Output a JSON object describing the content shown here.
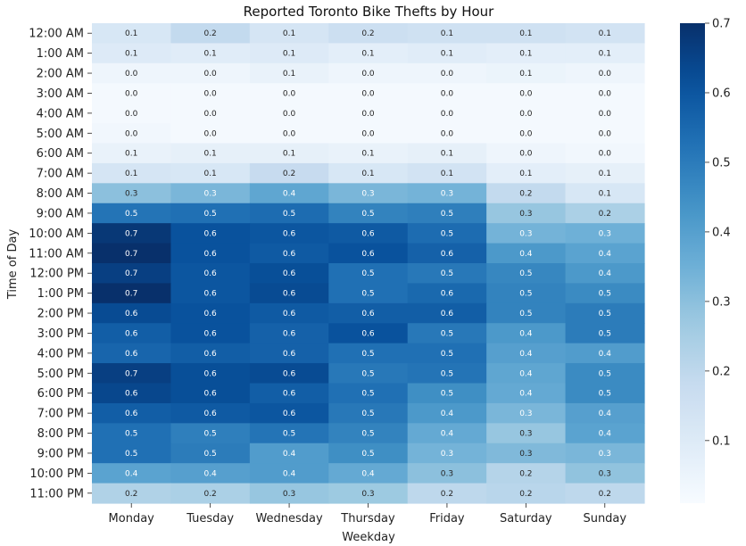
{
  "chart_data": {
    "type": "heatmap",
    "title": "Reported Toronto Bike Thefts by Hour",
    "xlabel": "Weekday",
    "ylabel": "Time of Day",
    "x_categories": [
      "Monday",
      "Tuesday",
      "Wednesday",
      "Thursday",
      "Friday",
      "Saturday",
      "Sunday"
    ],
    "y_categories": [
      "12:00 AM",
      "1:00 AM",
      "2:00 AM",
      "3:00 AM",
      "4:00 AM",
      "5:00 AM",
      "6:00 AM",
      "7:00 AM",
      "8:00 AM",
      "9:00 AM",
      "10:00 AM",
      "11:00 AM",
      "12:00 PM",
      "1:00 PM",
      "2:00 PM",
      "3:00 PM",
      "4:00 PM",
      "5:00 PM",
      "6:00 PM",
      "7:00 PM",
      "8:00 PM",
      "9:00 PM",
      "10:00 PM",
      "11:00 PM"
    ],
    "values": [
      [
        0.12,
        0.19,
        0.13,
        0.16,
        0.15,
        0.15,
        0.14
      ],
      [
        0.1,
        0.09,
        0.1,
        0.08,
        0.09,
        0.08,
        0.08
      ],
      [
        0.04,
        0.04,
        0.06,
        0.04,
        0.04,
        0.05,
        0.04
      ],
      [
        0.02,
        0.02,
        0.02,
        0.02,
        0.02,
        0.02,
        0.02
      ],
      [
        0.02,
        0.02,
        0.02,
        0.02,
        0.02,
        0.02,
        0.02
      ],
      [
        0.03,
        0.02,
        0.02,
        0.02,
        0.02,
        0.02,
        0.02
      ],
      [
        0.06,
        0.07,
        0.07,
        0.06,
        0.07,
        0.04,
        0.03
      ],
      [
        0.13,
        0.12,
        0.18,
        0.12,
        0.14,
        0.08,
        0.07
      ],
      [
        0.3,
        0.33,
        0.38,
        0.33,
        0.34,
        0.19,
        0.12
      ],
      [
        0.52,
        0.53,
        0.54,
        0.48,
        0.49,
        0.28,
        0.24
      ],
      [
        0.68,
        0.61,
        0.6,
        0.59,
        0.54,
        0.34,
        0.35
      ],
      [
        0.7,
        0.61,
        0.59,
        0.61,
        0.57,
        0.42,
        0.39
      ],
      [
        0.66,
        0.6,
        0.62,
        0.53,
        0.51,
        0.47,
        0.42
      ],
      [
        0.7,
        0.6,
        0.63,
        0.53,
        0.55,
        0.48,
        0.46
      ],
      [
        0.63,
        0.61,
        0.59,
        0.58,
        0.58,
        0.48,
        0.5
      ],
      [
        0.58,
        0.61,
        0.57,
        0.61,
        0.51,
        0.42,
        0.5
      ],
      [
        0.56,
        0.58,
        0.57,
        0.53,
        0.53,
        0.4,
        0.41
      ],
      [
        0.66,
        0.62,
        0.63,
        0.51,
        0.52,
        0.38,
        0.46
      ],
      [
        0.64,
        0.62,
        0.58,
        0.53,
        0.45,
        0.37,
        0.46
      ],
      [
        0.58,
        0.59,
        0.6,
        0.51,
        0.42,
        0.33,
        0.4
      ],
      [
        0.53,
        0.49,
        0.52,
        0.48,
        0.37,
        0.28,
        0.39
      ],
      [
        0.53,
        0.5,
        0.41,
        0.45,
        0.34,
        0.32,
        0.33
      ],
      [
        0.39,
        0.4,
        0.41,
        0.37,
        0.3,
        0.22,
        0.29
      ],
      [
        0.23,
        0.24,
        0.28,
        0.27,
        0.2,
        0.21,
        0.2
      ]
    ],
    "colormap": "Blues",
    "vmin": 0.01,
    "vmax": 0.7,
    "colorbar_ticks": [
      0.1,
      0.2,
      0.3,
      0.4,
      0.5,
      0.6,
      0.7
    ],
    "annotation_format": "1 decimal"
  }
}
